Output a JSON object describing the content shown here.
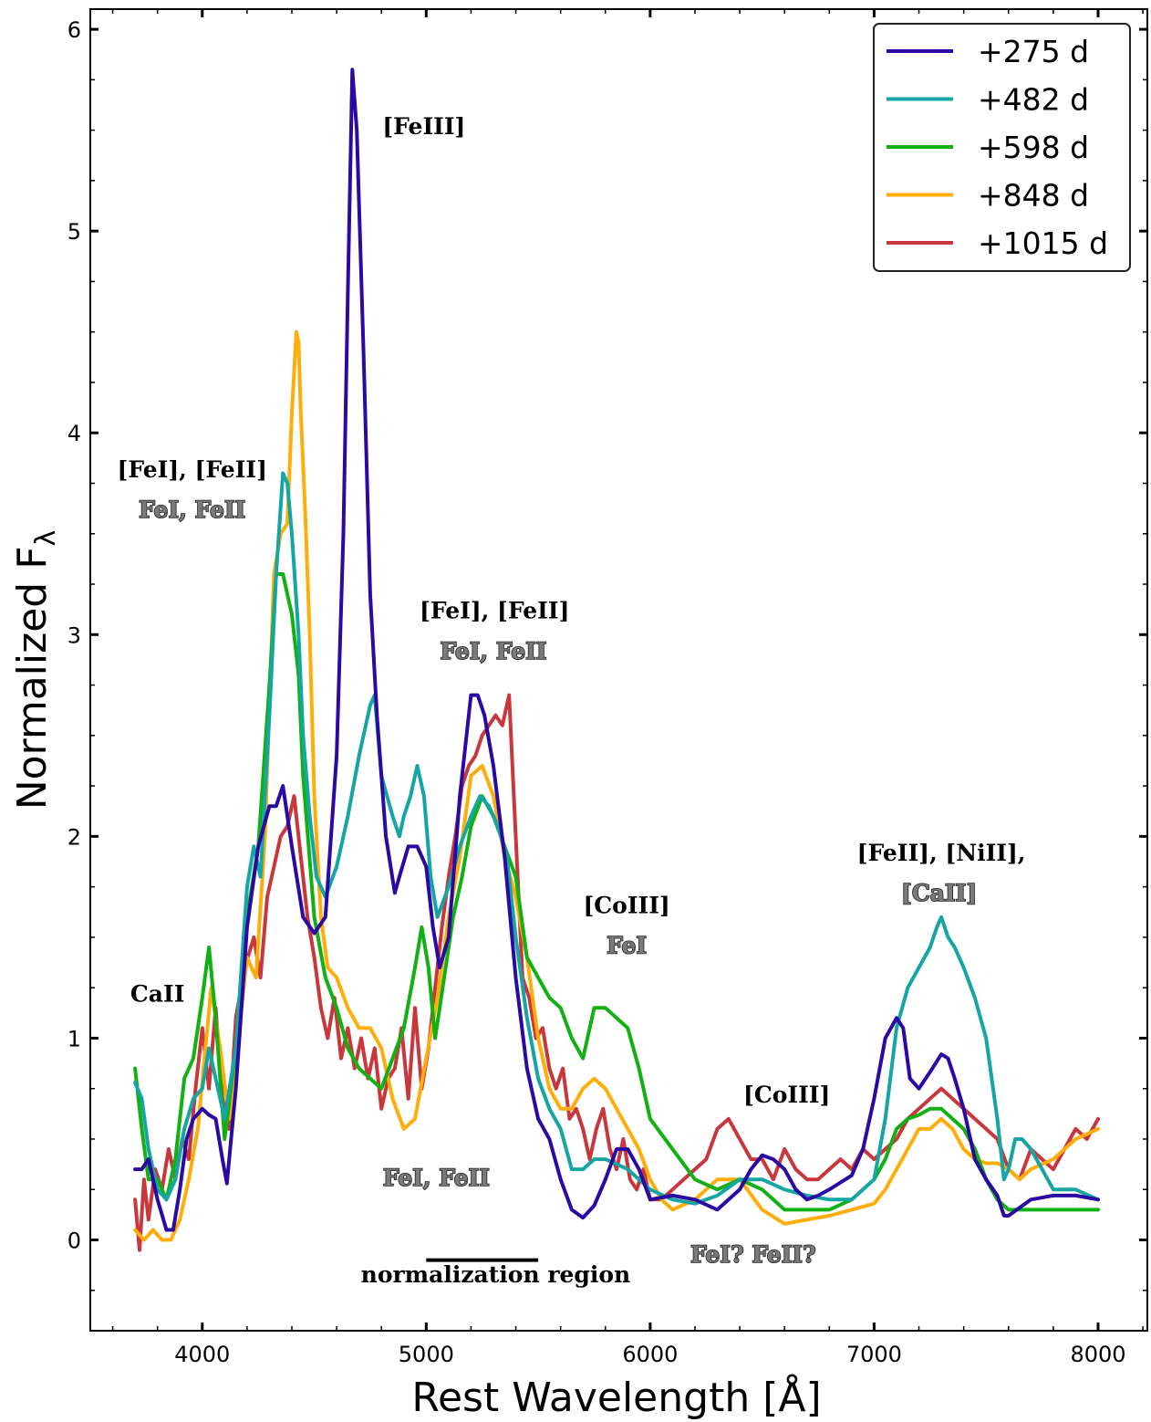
{
  "chart_data": {
    "type": "line",
    "title": "",
    "xlabel": "Rest Wavelength [Å]",
    "ylabel": "Normalized F",
    "ylabel_sub": "λ",
    "xlim": [
      3500,
      8220
    ],
    "ylim": [
      -0.45,
      6.1
    ],
    "x_ticks": [
      4000,
      5000,
      6000,
      7000,
      8000
    ],
    "y_ticks": [
      0,
      1,
      2,
      3,
      4,
      5,
      6
    ],
    "grid": false,
    "legend_position": "top-right",
    "series": [
      {
        "name": "+275 d",
        "color": "#2a0aa2",
        "x": [
          3700,
          3730,
          3760,
          3800,
          3840,
          3870,
          3900,
          3930,
          3960,
          4000,
          4030,
          4060,
          4090,
          4110,
          4150,
          4200,
          4250,
          4300,
          4330,
          4360,
          4400,
          4450,
          4500,
          4550,
          4600,
          4630,
          4650,
          4670,
          4690,
          4720,
          4750,
          4780,
          4820,
          4860,
          4880,
          4920,
          4960,
          5000,
          5030,
          5060,
          5100,
          5150,
          5200,
          5230,
          5260,
          5300,
          5350,
          5400,
          5450,
          5500,
          5550,
          5600,
          5650,
          5700,
          5750,
          5800,
          5850,
          5900,
          5950,
          6000,
          6100,
          6200,
          6300,
          6400,
          6450,
          6500,
          6550,
          6600,
          6650,
          6700,
          6750,
          6800,
          6900,
          6950,
          7000,
          7050,
          7100,
          7130,
          7160,
          7200,
          7230,
          7260,
          7300,
          7330,
          7360,
          7400,
          7450,
          7500,
          7550,
          7580,
          7600,
          7700,
          7800,
          7900,
          8000
        ],
        "values": [
          0.35,
          0.35,
          0.4,
          0.2,
          0.05,
          0.05,
          0.25,
          0.5,
          0.6,
          0.65,
          0.62,
          0.6,
          0.4,
          0.28,
          0.75,
          1.55,
          1.95,
          2.15,
          2.15,
          2.25,
          1.95,
          1.6,
          1.52,
          1.6,
          2.4,
          3.5,
          4.7,
          5.8,
          5.5,
          4.4,
          3.2,
          2.6,
          2.0,
          1.72,
          1.8,
          1.95,
          1.95,
          1.85,
          1.55,
          1.35,
          1.5,
          2.2,
          2.7,
          2.7,
          2.6,
          2.35,
          1.9,
          1.3,
          0.85,
          0.6,
          0.5,
          0.3,
          0.15,
          0.11,
          0.17,
          0.3,
          0.45,
          0.45,
          0.35,
          0.2,
          0.22,
          0.2,
          0.15,
          0.25,
          0.35,
          0.42,
          0.4,
          0.35,
          0.25,
          0.2,
          0.22,
          0.25,
          0.32,
          0.45,
          0.7,
          1.0,
          1.1,
          1.05,
          0.8,
          0.75,
          0.8,
          0.85,
          0.92,
          0.9,
          0.8,
          0.65,
          0.4,
          0.3,
          0.22,
          0.12,
          0.12,
          0.2,
          0.22,
          0.22,
          0.2
        ]
      },
      {
        "name": "+482 d",
        "color": "#16a5a5",
        "x": [
          3700,
          3730,
          3760,
          3800,
          3840,
          3880,
          3920,
          3960,
          4000,
          4030,
          4060,
          4100,
          4150,
          4200,
          4230,
          4260,
          4300,
          4330,
          4360,
          4380,
          4400,
          4430,
          4450,
          4480,
          4510,
          4550,
          4600,
          4650,
          4700,
          4750,
          4770,
          4800,
          4850,
          4880,
          4900,
          4930,
          4960,
          4990,
          5020,
          5050,
          5100,
          5150,
          5200,
          5240,
          5280,
          5320,
          5360,
          5400,
          5450,
          5500,
          5550,
          5600,
          5650,
          5700,
          5750,
          5800,
          5900,
          6000,
          6100,
          6200,
          6300,
          6400,
          6500,
          6600,
          6700,
          6800,
          6900,
          7000,
          7050,
          7100,
          7150,
          7200,
          7250,
          7280,
          7300,
          7330,
          7360,
          7400,
          7450,
          7500,
          7550,
          7580,
          7600,
          7630,
          7660,
          7700,
          7750,
          7800,
          7900,
          8000
        ],
        "values": [
          0.78,
          0.7,
          0.45,
          0.25,
          0.2,
          0.3,
          0.55,
          0.7,
          0.75,
          0.95,
          0.8,
          0.6,
          0.95,
          1.75,
          1.95,
          1.8,
          2.6,
          3.3,
          3.8,
          3.75,
          3.5,
          3.0,
          2.5,
          2.1,
          1.8,
          1.7,
          1.85,
          2.1,
          2.4,
          2.65,
          2.7,
          2.3,
          2.1,
          2.0,
          2.1,
          2.2,
          2.35,
          2.2,
          1.8,
          1.6,
          1.75,
          1.95,
          2.1,
          2.2,
          2.15,
          2.05,
          1.9,
          1.5,
          1.1,
          0.8,
          0.65,
          0.55,
          0.35,
          0.35,
          0.4,
          0.4,
          0.35,
          0.25,
          0.2,
          0.18,
          0.22,
          0.3,
          0.3,
          0.25,
          0.22,
          0.2,
          0.2,
          0.3,
          0.6,
          1.05,
          1.25,
          1.35,
          1.45,
          1.55,
          1.6,
          1.5,
          1.45,
          1.35,
          1.2,
          1.0,
          0.6,
          0.3,
          0.35,
          0.5,
          0.5,
          0.45,
          0.35,
          0.25,
          0.25,
          0.2
        ]
      },
      {
        "name": "+598 d",
        "color": "#12b012",
        "x": [
          3700,
          3730,
          3760,
          3800,
          3840,
          3880,
          3920,
          3960,
          4000,
          4030,
          4060,
          4100,
          4150,
          4200,
          4250,
          4300,
          4330,
          4360,
          4380,
          4400,
          4430,
          4450,
          4500,
          4550,
          4600,
          4650,
          4700,
          4750,
          4800,
          4850,
          4900,
          4950,
          4980,
          5010,
          5040,
          5080,
          5120,
          5160,
          5200,
          5250,
          5300,
          5350,
          5400,
          5450,
          5500,
          5550,
          5600,
          5650,
          5700,
          5750,
          5800,
          5850,
          5900,
          5950,
          6000,
          6100,
          6200,
          6300,
          6400,
          6500,
          6600,
          6700,
          6800,
          6900,
          7000,
          7050,
          7100,
          7150,
          7200,
          7250,
          7300,
          7350,
          7400,
          7450,
          7500,
          7550,
          7600,
          7700,
          7800,
          7900,
          8000
        ],
        "values": [
          0.85,
          0.55,
          0.3,
          0.3,
          0.2,
          0.4,
          0.8,
          0.9,
          1.2,
          1.45,
          1.1,
          0.5,
          0.95,
          1.6,
          1.95,
          2.75,
          3.3,
          3.3,
          3.2,
          3.1,
          2.8,
          2.3,
          1.6,
          1.3,
          1.15,
          0.95,
          0.85,
          0.8,
          0.75,
          0.9,
          1.05,
          1.35,
          1.55,
          1.35,
          1.0,
          1.3,
          1.6,
          1.8,
          2.05,
          2.2,
          2.1,
          1.95,
          1.8,
          1.4,
          1.3,
          1.2,
          1.15,
          1.0,
          0.9,
          1.15,
          1.15,
          1.1,
          1.05,
          0.85,
          0.6,
          0.45,
          0.3,
          0.25,
          0.3,
          0.25,
          0.15,
          0.15,
          0.15,
          0.2,
          0.3,
          0.4,
          0.55,
          0.6,
          0.62,
          0.65,
          0.65,
          0.6,
          0.55,
          0.45,
          0.3,
          0.2,
          0.15,
          0.15,
          0.15,
          0.15,
          0.15
        ]
      },
      {
        "name": "+848 d",
        "color": "#ffad0a",
        "x": [
          3700,
          3740,
          3780,
          3820,
          3860,
          3900,
          3940,
          3980,
          4010,
          4040,
          4080,
          4120,
          4160,
          4200,
          4240,
          4280,
          4320,
          4350,
          4380,
          4400,
          4420,
          4430,
          4440,
          4460,
          4480,
          4500,
          4530,
          4560,
          4600,
          4650,
          4700,
          4750,
          4800,
          4850,
          4900,
          4950,
          5000,
          5050,
          5100,
          5150,
          5200,
          5250,
          5300,
          5350,
          5400,
          5450,
          5500,
          5550,
          5600,
          5650,
          5700,
          5750,
          5800,
          5850,
          5900,
          5950,
          6000,
          6050,
          6100,
          6200,
          6300,
          6400,
          6500,
          6600,
          6700,
          6800,
          6900,
          7000,
          7050,
          7100,
          7150,
          7200,
          7250,
          7300,
          7350,
          7400,
          7450,
          7500,
          7550,
          7600,
          7650,
          7700,
          7800,
          7900,
          8000
        ],
        "values": [
          0.05,
          0.0,
          0.05,
          0.0,
          0.0,
          0.1,
          0.3,
          0.55,
          0.9,
          1.25,
          0.95,
          0.6,
          1.0,
          1.4,
          1.3,
          2.0,
          3.3,
          3.5,
          3.55,
          4.1,
          4.5,
          4.45,
          4.1,
          3.6,
          3.0,
          2.2,
          1.6,
          1.35,
          1.3,
          1.15,
          1.05,
          1.05,
          0.95,
          0.7,
          0.55,
          0.6,
          0.9,
          1.2,
          1.6,
          1.9,
          2.3,
          2.35,
          2.2,
          1.9,
          1.7,
          1.4,
          1.0,
          0.75,
          0.65,
          0.65,
          0.75,
          0.8,
          0.75,
          0.65,
          0.55,
          0.45,
          0.3,
          0.2,
          0.15,
          0.2,
          0.3,
          0.3,
          0.15,
          0.08,
          0.1,
          0.12,
          0.15,
          0.18,
          0.25,
          0.35,
          0.45,
          0.55,
          0.55,
          0.6,
          0.55,
          0.45,
          0.4,
          0.38,
          0.38,
          0.35,
          0.3,
          0.35,
          0.4,
          0.5,
          0.55
        ]
      },
      {
        "name": "+1015 d",
        "color": "#c8373c",
        "x": [
          3700,
          3720,
          3740,
          3760,
          3790,
          3820,
          3850,
          3880,
          3910,
          3940,
          3970,
          4000,
          4030,
          4060,
          4090,
          4120,
          4150,
          4190,
          4230,
          4260,
          4290,
          4320,
          4350,
          4380,
          4410,
          4440,
          4470,
          4500,
          4530,
          4560,
          4590,
          4620,
          4650,
          4680,
          4710,
          4740,
          4770,
          4800,
          4830,
          4860,
          4890,
          4920,
          4950,
          4980,
          5010,
          5040,
          5070,
          5100,
          5130,
          5160,
          5190,
          5220,
          5250,
          5280,
          5310,
          5340,
          5370,
          5400,
          5430,
          5460,
          5490,
          5520,
          5550,
          5580,
          5610,
          5640,
          5670,
          5700,
          5730,
          5760,
          5790,
          5820,
          5850,
          5880,
          5910,
          5940,
          5970,
          6000,
          6050,
          6100,
          6150,
          6200,
          6250,
          6300,
          6350,
          6400,
          6450,
          6500,
          6550,
          6600,
          6650,
          6700,
          6750,
          6800,
          6850,
          6900,
          6950,
          7000,
          7050,
          7100,
          7150,
          7200,
          7250,
          7300,
          7350,
          7400,
          7450,
          7500,
          7550,
          7600,
          7650,
          7700,
          7750,
          7800,
          7850,
          7900,
          7950,
          8000
        ],
        "values": [
          0.2,
          -0.05,
          0.3,
          0.1,
          0.35,
          0.25,
          0.45,
          0.3,
          0.5,
          0.4,
          0.75,
          1.05,
          0.75,
          1.15,
          0.7,
          0.55,
          1.1,
          1.35,
          1.5,
          1.3,
          1.7,
          1.85,
          2.0,
          2.05,
          2.2,
          1.9,
          1.6,
          1.4,
          1.15,
          1.0,
          1.2,
          0.9,
          1.05,
          0.85,
          1.0,
          0.8,
          0.95,
          0.65,
          0.8,
          0.85,
          1.05,
          0.7,
          1.15,
          0.75,
          0.95,
          1.25,
          1.55,
          1.8,
          2.0,
          2.25,
          2.35,
          2.4,
          2.5,
          2.55,
          2.6,
          2.55,
          2.7,
          2.0,
          1.3,
          1.2,
          1.0,
          1.05,
          0.85,
          0.75,
          0.85,
          0.6,
          0.65,
          0.55,
          0.4,
          0.55,
          0.65,
          0.45,
          0.35,
          0.5,
          0.3,
          0.25,
          0.35,
          0.2,
          0.2,
          0.25,
          0.3,
          0.35,
          0.4,
          0.55,
          0.6,
          0.5,
          0.4,
          0.4,
          0.3,
          0.45,
          0.35,
          0.3,
          0.3,
          0.35,
          0.4,
          0.35,
          0.45,
          0.4,
          0.45,
          0.5,
          0.6,
          0.65,
          0.7,
          0.75,
          0.7,
          0.65,
          0.6,
          0.55,
          0.5,
          0.35,
          0.3,
          0.45,
          0.4,
          0.35,
          0.45,
          0.55,
          0.5,
          0.6
        ]
      }
    ],
    "annotations": [
      {
        "text": "[FeIII]",
        "x": 4990,
        "y": 5.48,
        "style": "black"
      },
      {
        "text": "[FeI], [FeII]",
        "x": 3955,
        "y": 3.78,
        "style": "black"
      },
      {
        "text": "FeI, FeII",
        "x": 3955,
        "y": 3.58,
        "style": "outline"
      },
      {
        "text": "[FeI], [FeII]",
        "x": 5305,
        "y": 3.08,
        "style": "black"
      },
      {
        "text": "FeI, FeII",
        "x": 5300,
        "y": 2.88,
        "style": "outline"
      },
      {
        "text": "[CoIII]",
        "x": 5895,
        "y": 1.62,
        "style": "black"
      },
      {
        "text": "FeI",
        "x": 5895,
        "y": 1.42,
        "style": "outline"
      },
      {
        "text": "CaII",
        "x": 3800,
        "y": 1.18,
        "style": "black"
      },
      {
        "text": "[CoIII]",
        "x": 6610,
        "y": 0.68,
        "style": "black"
      },
      {
        "text": "FeI, FeII",
        "x": 5045,
        "y": 0.27,
        "style": "outline"
      },
      {
        "text": "[FeII], [NiII],",
        "x": 7300,
        "y": 1.88,
        "style": "black"
      },
      {
        "text": "[CaII]",
        "x": 7290,
        "y": 1.68,
        "style": "outline"
      },
      {
        "text": "FeI? FeII?",
        "x": 6460,
        "y": -0.11,
        "style": "outline"
      },
      {
        "text": "normalization region",
        "x": 5310,
        "y": -0.21,
        "style": "black"
      }
    ],
    "normalization_region": [
      5000,
      5500
    ],
    "normalization_region_y": -0.1
  }
}
